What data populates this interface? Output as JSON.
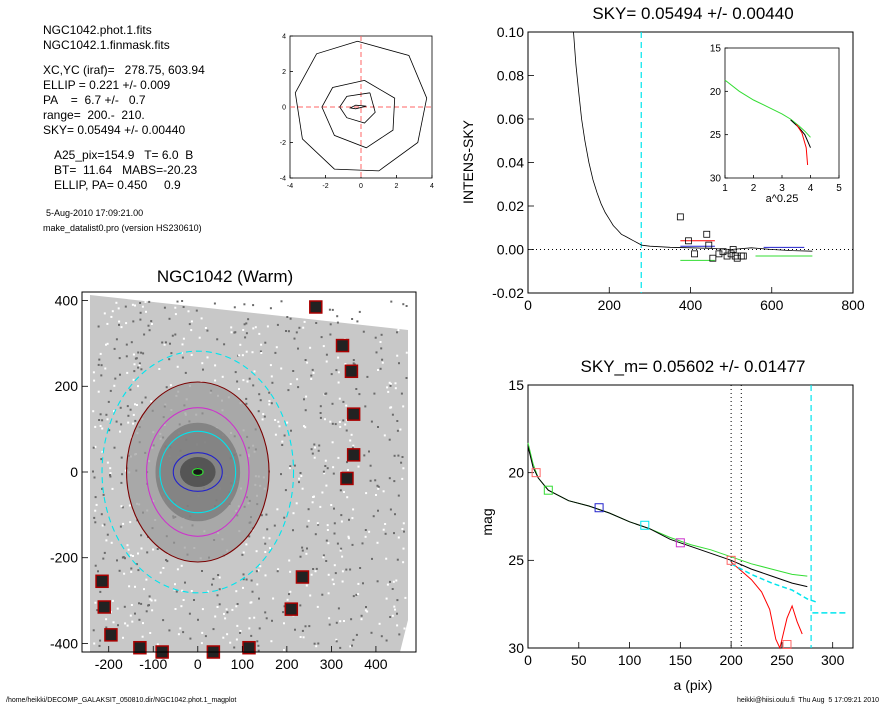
{
  "header_info": {
    "lines_a": [
      "NGC1042.phot.1.fits",
      "NGC1042.1.finmask.fits"
    ],
    "lines_b": [
      "XC,YC (iraf)=   278.75, 603.94",
      "ELLIP = 0.221 +/- 0.009",
      "PA    =  6.7 +/-   0.7",
      "range=  200.-  210.",
      "SKY= 0.05494 +/- 0.00440"
    ],
    "lines_c": [
      "A25_pix=154.9   T= 6.0  B",
      "BT=  11.64   MABS=-20.23",
      "ELLIP, PA= 0.450     0.9"
    ],
    "timestamp": "5-Aug-2010 17:09:21.00",
    "program": "make_datalist0.pro (version HS230610)"
  },
  "footer": {
    "left": "/home/heikki/DECOMP_GALAKSIT_050810.dir/NGC1042.phot.1_magplot",
    "right": "heikki@hiisi.oulu.fi  Thu Aug  5 17:09:21 2010"
  },
  "colors": {
    "axis": "#000000",
    "cyan": "#00e5ee",
    "red": "#ff0000",
    "green": "#33dd33",
    "blue": "#2222cc",
    "magenta": "#cc33cc",
    "pink": "#ff6666",
    "dark_red": "#7a0000"
  },
  "chart_data": [
    {
      "id": "contour",
      "type": "contour",
      "title": "",
      "xlim": [
        -4,
        4
      ],
      "ylim": [
        -4,
        4
      ],
      "xticks": [
        "-4",
        "-2",
        "0",
        "2",
        "4"
      ],
      "yticks": [
        "-4",
        "-2",
        "0",
        "2",
        "4"
      ],
      "contours": [
        [
          [
            0.3,
            0.05
          ],
          [
            -0.3,
            0.1
          ],
          [
            -0.6,
            -0.05
          ],
          [
            -0.3,
            -0.1
          ],
          [
            0.3,
            0.05
          ]
        ],
        [
          [
            0.5,
            0.8
          ],
          [
            -0.8,
            0.6
          ],
          [
            -1.2,
            0
          ],
          [
            -0.8,
            -0.6
          ],
          [
            0.2,
            -0.9
          ],
          [
            0.8,
            -0.3
          ],
          [
            0.5,
            0.8
          ]
        ],
        [
          [
            0.2,
            1.5
          ],
          [
            -1.6,
            1.1
          ],
          [
            -2.2,
            0
          ],
          [
            -1.5,
            -1.6
          ],
          [
            0.3,
            -2.3
          ],
          [
            1.8,
            -1.3
          ],
          [
            1.9,
            0.5
          ],
          [
            0.2,
            1.5
          ]
        ],
        [
          [
            -0.2,
            3.7
          ],
          [
            -2.5,
            3.0
          ],
          [
            -3.7,
            0.8
          ],
          [
            -3.3,
            -1.8
          ],
          [
            -1.5,
            -3.5
          ],
          [
            1,
            -3.6
          ],
          [
            3.2,
            -2
          ],
          [
            3.7,
            0.5
          ],
          [
            2.7,
            2.9
          ],
          [
            -0.2,
            3.7
          ]
        ]
      ]
    },
    {
      "id": "sky",
      "type": "line",
      "title": "SKY= 0.05494 +/- 0.00440",
      "xlabel": "",
      "ylabel": "INTENS-SKY",
      "xlim": [
        0,
        800
      ],
      "ylim": [
        -0.02,
        0.1
      ],
      "xticks": [
        "0",
        "200",
        "400",
        "600",
        "800"
      ],
      "yticks": [
        "-0.02",
        "0.00",
        "0.02",
        "0.04",
        "0.06",
        "0.08",
        "0.10"
      ],
      "profile": [
        [
          112,
          0.1
        ],
        [
          118,
          0.085
        ],
        [
          125,
          0.072
        ],
        [
          132,
          0.06
        ],
        [
          140,
          0.05
        ],
        [
          150,
          0.04
        ],
        [
          160,
          0.032
        ],
        [
          170,
          0.026
        ],
        [
          180,
          0.021
        ],
        [
          190,
          0.017
        ],
        [
          200,
          0.014
        ],
        [
          210,
          0.011
        ],
        [
          220,
          0.009
        ],
        [
          230,
          0.007
        ],
        [
          240,
          0.006
        ],
        [
          250,
          0.005
        ],
        [
          260,
          0.004
        ],
        [
          270,
          0.003
        ],
        [
          280,
          0.002
        ],
        [
          300,
          0.0015
        ],
        [
          350,
          0.001
        ],
        [
          400,
          0.0008
        ],
        [
          450,
          0.0005
        ],
        [
          500,
          0.0
        ],
        [
          550,
          0.0008
        ],
        [
          600,
          0.0
        ],
        [
          650,
          -0.0005
        ],
        [
          700,
          -0.0008
        ]
      ],
      "squares": [
        [
          375,
          0.015
        ],
        [
          395,
          0.004
        ],
        [
          410,
          -0.002
        ],
        [
          440,
          0.007
        ],
        [
          445,
          0.002
        ],
        [
          455,
          -0.004
        ],
        [
          470,
          -0.002
        ],
        [
          480,
          -0.001
        ],
        [
          490,
          -0.003
        ],
        [
          500,
          -0.002
        ],
        [
          505,
          0.0
        ],
        [
          510,
          -0.003
        ],
        [
          515,
          -0.004
        ],
        [
          525,
          -0.003
        ],
        [
          530,
          -0.003
        ]
      ],
      "segments": [
        {
          "color": "red",
          "x": [
            375,
            460
          ],
          "y": 0.004
        },
        {
          "color": "blue",
          "x": [
            375,
            460
          ],
          "y": 0.0015
        },
        {
          "color": "green",
          "x": [
            375,
            460
          ],
          "y": -0.005
        },
        {
          "color": "blue",
          "x": [
            580,
            680
          ],
          "y": 0.001
        },
        {
          "color": "green",
          "x": [
            560,
            700
          ],
          "y": -0.003
        }
      ],
      "vline_x": 278.75,
      "inset": {
        "xlabel": "a^0.25",
        "xlim": [
          1,
          5
        ],
        "ylim": [
          15,
          30
        ],
        "xticks": [
          "1",
          "2",
          "3",
          "4",
          "5"
        ],
        "yticks": [
          "15",
          "20",
          "25",
          "30"
        ],
        "green": [
          [
            1,
            18.7
          ],
          [
            1.5,
            20
          ],
          [
            2,
            21
          ],
          [
            2.5,
            21.8
          ],
          [
            3,
            22.6
          ],
          [
            3.3,
            23.2
          ],
          [
            3.6,
            24.0
          ],
          [
            3.8,
            24.6
          ],
          [
            4.0,
            25.3
          ]
        ],
        "black": [
          [
            3.3,
            23.3
          ],
          [
            3.6,
            24.2
          ],
          [
            3.8,
            25.0
          ],
          [
            4.0,
            26.5
          ]
        ],
        "red": [
          [
            3.5,
            23.8
          ],
          [
            3.7,
            24.8
          ],
          [
            3.85,
            26.5
          ],
          [
            3.9,
            28.5
          ]
        ]
      }
    },
    {
      "id": "galaxy",
      "type": "image",
      "title": "NGC1042 (Warm)",
      "xlim": [
        -260,
        490
      ],
      "ylim": [
        -420,
        420
      ],
      "xticks": [
        "-200",
        "-100",
        "0",
        "100",
        "200",
        "300",
        "400"
      ],
      "yticks": [
        "-400",
        "-200",
        "0",
        "200",
        "400"
      ],
      "stars": [
        [
          265,
          385
        ],
        [
          325,
          295
        ],
        [
          345,
          235
        ],
        [
          350,
          135
        ],
        [
          350,
          40
        ],
        [
          335,
          -15
        ],
        [
          235,
          -245
        ],
        [
          210,
          -320
        ],
        [
          -215,
          -255
        ],
        [
          -210,
          -315
        ],
        [
          -195,
          -380
        ],
        [
          -130,
          -410
        ],
        [
          -80,
          -420
        ],
        [
          35,
          -420
        ],
        [
          115,
          -410
        ]
      ],
      "ellipses": [
        {
          "color": "cyan",
          "rx": 215,
          "ry": 282,
          "dashed": true
        },
        {
          "color": "dark_red",
          "rx": 160,
          "ry": 210,
          "dashed": false
        },
        {
          "color": "magenta",
          "rx": 115,
          "ry": 150,
          "dashed": false
        },
        {
          "color": "cyan",
          "rx": 85,
          "ry": 95,
          "dashed": false
        },
        {
          "color": "blue",
          "rx": 55,
          "ry": 45,
          "dashed": false
        },
        {
          "color": "green",
          "rx": 12,
          "ry": 8,
          "dashed": false
        }
      ]
    },
    {
      "id": "mag",
      "type": "line",
      "title": "SKY_m=  0.05602 +/- 0.01477",
      "xlabel": "a (pix)",
      "ylabel": "mag",
      "xlim": [
        0,
        320
      ],
      "ylim": [
        30,
        15
      ],
      "xticks": [
        "0",
        "50",
        "100",
        "150",
        "200",
        "250",
        "300"
      ],
      "yticks": [
        "15",
        "20",
        "25",
        "30"
      ],
      "black": [
        [
          0,
          18.5
        ],
        [
          5,
          19.7
        ],
        [
          10,
          20.3
        ],
        [
          20,
          21.0
        ],
        [
          40,
          21.6
        ],
        [
          60,
          21.9
        ],
        [
          80,
          22.3
        ],
        [
          100,
          22.8
        ],
        [
          120,
          23.2
        ],
        [
          140,
          23.8
        ],
        [
          160,
          24.2
        ],
        [
          180,
          24.6
        ],
        [
          200,
          25.0
        ],
        [
          220,
          25.5
        ],
        [
          240,
          25.9
        ],
        [
          260,
          26.3
        ],
        [
          275,
          26.5
        ]
      ],
      "green": [
        [
          0,
          18.3
        ],
        [
          5,
          19.5
        ],
        [
          10,
          20.3
        ],
        [
          20,
          21.0
        ],
        [
          40,
          21.6
        ],
        [
          60,
          21.9
        ],
        [
          80,
          22.3
        ],
        [
          100,
          22.8
        ],
        [
          120,
          23.2
        ],
        [
          140,
          23.7
        ],
        [
          160,
          24.1
        ],
        [
          180,
          24.4
        ],
        [
          200,
          24.8
        ],
        [
          220,
          25.2
        ],
        [
          240,
          25.5
        ],
        [
          260,
          25.8
        ],
        [
          275,
          25.9
        ]
      ],
      "red": [
        [
          200,
          25.1
        ],
        [
          210,
          25.6
        ],
        [
          220,
          26.1
        ],
        [
          230,
          26.8
        ],
        [
          238,
          27.8
        ],
        [
          244,
          29.5
        ],
        [
          248,
          30
        ],
        [
          255,
          28.3
        ],
        [
          260,
          27.6
        ],
        [
          265,
          28.5
        ],
        [
          270,
          29.2
        ]
      ],
      "cyan_dash": [
        [
          200,
          25.2
        ],
        [
          220,
          25.8
        ],
        [
          240,
          26.3
        ],
        [
          260,
          26.7
        ],
        [
          275,
          27.2
        ],
        [
          285,
          27.4
        ]
      ],
      "flat_cyan": {
        "x": [
          280,
          315
        ],
        "y": 28.0
      },
      "squares": [
        {
          "x": 8,
          "y": 20.0,
          "color": "pink"
        },
        {
          "x": 20,
          "y": 21.0,
          "color": "green"
        },
        {
          "x": 70,
          "y": 22.0,
          "color": "blue"
        },
        {
          "x": 115,
          "y": 23.0,
          "color": "cyan"
        },
        {
          "x": 150,
          "y": 24.0,
          "color": "magenta"
        },
        {
          "x": 200,
          "y": 25.0,
          "color": "pink"
        },
        {
          "x": 255,
          "y": 29.8,
          "color": "pink"
        }
      ],
      "vlines_dotted": [
        200,
        210
      ],
      "vline_dashed": 278.75
    }
  ]
}
